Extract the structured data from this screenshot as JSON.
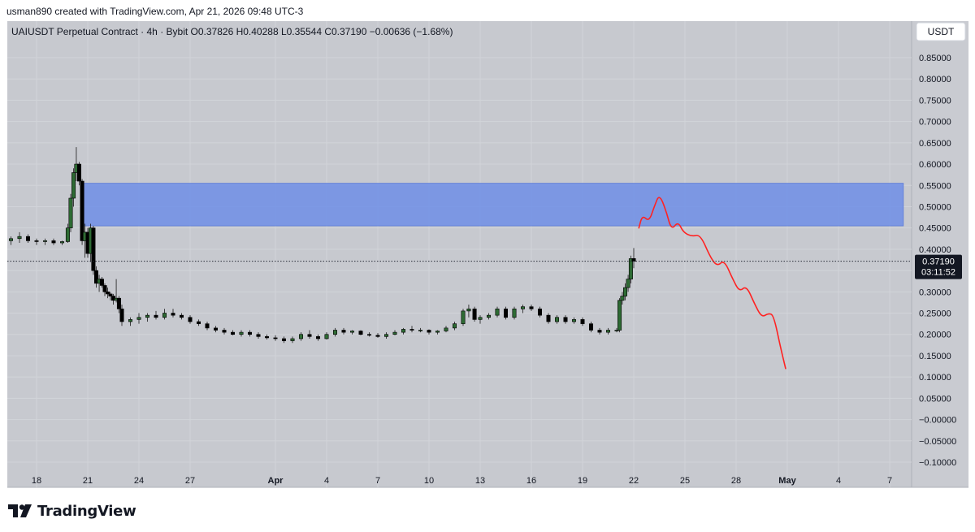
{
  "header": {
    "credit": "usman890 created with TradingView.com, Apr 21, 2026 09:48 UTC-3"
  },
  "legend": {
    "text": "UAIUSDT Perpetual Contract · 4h · Bybit  O0.37826  H0.40288  L0.35544  C0.37190  −0.00636 (−1.68%)"
  },
  "currency_button": {
    "label": "USDT"
  },
  "brand": {
    "name": "TradingView"
  },
  "chart_data": {
    "type": "candlestick",
    "symbol": "UAIUSDT Perpetual Contract",
    "interval": "4h",
    "exchange": "Bybit",
    "ohlc": {
      "open": 0.37826,
      "high": 0.40288,
      "low": 0.35544,
      "close": 0.3719,
      "change": -0.00636,
      "change_pct": -1.68
    },
    "last_price": {
      "value": 0.3719,
      "label": "0.37190",
      "countdown": "03:11:52"
    },
    "y_axis": {
      "min": -0.1,
      "max": 0.85,
      "step": 0.05,
      "tick_labels": [
        "0.85000",
        "0.80000",
        "0.75000",
        "0.70000",
        "0.65000",
        "0.60000",
        "0.55000",
        "0.50000",
        "0.45000",
        "0.40000",
        "0.35000",
        "0.30000",
        "0.25000",
        "0.20000",
        "0.15000",
        "0.10000",
        "0.05000",
        "−0.00000",
        "−0.05000",
        "−0.10000"
      ]
    },
    "x_axis": {
      "start_date": "2026-03-18",
      "ticks": [
        {
          "label": "18",
          "day": 0
        },
        {
          "label": "21",
          "day": 3
        },
        {
          "label": "24",
          "day": 6
        },
        {
          "label": "27",
          "day": 9
        },
        {
          "label": "Apr",
          "day": 14,
          "bold": true
        },
        {
          "label": "4",
          "day": 17
        },
        {
          "label": "7",
          "day": 20
        },
        {
          "label": "10",
          "day": 23
        },
        {
          "label": "13",
          "day": 26
        },
        {
          "label": "16",
          "day": 29
        },
        {
          "label": "19",
          "day": 32
        },
        {
          "label": "22",
          "day": 35
        },
        {
          "label": "25",
          "day": 38
        },
        {
          "label": "28",
          "day": 41
        },
        {
          "label": "May",
          "day": 44,
          "bold": true
        },
        {
          "label": "4",
          "day": 47
        },
        {
          "label": "7",
          "day": 50
        }
      ]
    },
    "grid": true,
    "candles": [
      [
        -1.5,
        0.42,
        0.43,
        0.41,
        0.425
      ],
      [
        -1.0,
        0.425,
        0.44,
        0.415,
        0.43
      ],
      [
        -0.5,
        0.43,
        0.435,
        0.415,
        0.42
      ],
      [
        0.0,
        0.42,
        0.425,
        0.41,
        0.418
      ],
      [
        0.5,
        0.418,
        0.425,
        0.41,
        0.42
      ],
      [
        1.0,
        0.42,
        0.425,
        0.41,
        0.415
      ],
      [
        1.5,
        0.415,
        0.42,
        0.41,
        0.418
      ],
      [
        1.83,
        0.418,
        0.46,
        0.415,
        0.45
      ],
      [
        2.0,
        0.45,
        0.53,
        0.44,
        0.52
      ],
      [
        2.17,
        0.52,
        0.59,
        0.5,
        0.58
      ],
      [
        2.33,
        0.58,
        0.64,
        0.56,
        0.6
      ],
      [
        2.5,
        0.6,
        0.605,
        0.55,
        0.56
      ],
      [
        2.67,
        0.56,
        0.565,
        0.41,
        0.42
      ],
      [
        2.83,
        0.42,
        0.46,
        0.38,
        0.44
      ],
      [
        3.0,
        0.44,
        0.45,
        0.38,
        0.39
      ],
      [
        3.17,
        0.39,
        0.46,
        0.37,
        0.45
      ],
      [
        3.33,
        0.45,
        0.455,
        0.34,
        0.35
      ],
      [
        3.5,
        0.35,
        0.36,
        0.31,
        0.32
      ],
      [
        3.67,
        0.32,
        0.34,
        0.3,
        0.33
      ],
      [
        3.83,
        0.33,
        0.335,
        0.31,
        0.315
      ],
      [
        4.0,
        0.315,
        0.32,
        0.29,
        0.3
      ],
      [
        4.17,
        0.3,
        0.31,
        0.285,
        0.295
      ],
      [
        4.33,
        0.295,
        0.3,
        0.28,
        0.29
      ],
      [
        4.5,
        0.29,
        0.295,
        0.27,
        0.28
      ],
      [
        4.67,
        0.28,
        0.33,
        0.275,
        0.285
      ],
      [
        4.83,
        0.285,
        0.29,
        0.25,
        0.26
      ],
      [
        5.0,
        0.26,
        0.27,
        0.22,
        0.23
      ],
      [
        5.5,
        0.23,
        0.24,
        0.22,
        0.235
      ],
      [
        6.0,
        0.235,
        0.25,
        0.225,
        0.24
      ],
      [
        6.5,
        0.24,
        0.25,
        0.23,
        0.245
      ],
      [
        7.0,
        0.245,
        0.255,
        0.235,
        0.24
      ],
      [
        7.5,
        0.24,
        0.26,
        0.235,
        0.25
      ],
      [
        8.0,
        0.25,
        0.26,
        0.24,
        0.245
      ],
      [
        8.5,
        0.245,
        0.25,
        0.235,
        0.24
      ],
      [
        9.0,
        0.24,
        0.245,
        0.225,
        0.23
      ],
      [
        9.5,
        0.23,
        0.235,
        0.22,
        0.225
      ],
      [
        10.0,
        0.225,
        0.23,
        0.21,
        0.215
      ],
      [
        10.5,
        0.215,
        0.22,
        0.205,
        0.21
      ],
      [
        11.0,
        0.21,
        0.215,
        0.2,
        0.205
      ],
      [
        11.5,
        0.205,
        0.21,
        0.198,
        0.2
      ],
      [
        12.0,
        0.2,
        0.21,
        0.195,
        0.205
      ],
      [
        12.5,
        0.205,
        0.21,
        0.195,
        0.2
      ],
      [
        13.0,
        0.2,
        0.205,
        0.19,
        0.195
      ],
      [
        13.5,
        0.195,
        0.2,
        0.188,
        0.192
      ],
      [
        14.0,
        0.192,
        0.198,
        0.185,
        0.19
      ],
      [
        14.5,
        0.19,
        0.195,
        0.18,
        0.185
      ],
      [
        15.0,
        0.185,
        0.195,
        0.18,
        0.19
      ],
      [
        15.5,
        0.19,
        0.205,
        0.185,
        0.2
      ],
      [
        16.0,
        0.2,
        0.21,
        0.19,
        0.195
      ],
      [
        16.5,
        0.195,
        0.2,
        0.185,
        0.19
      ],
      [
        17.0,
        0.19,
        0.205,
        0.188,
        0.2
      ],
      [
        17.5,
        0.2,
        0.215,
        0.195,
        0.21
      ],
      [
        18.0,
        0.21,
        0.215,
        0.2,
        0.205
      ],
      [
        18.5,
        0.205,
        0.21,
        0.2,
        0.208
      ],
      [
        19.0,
        0.208,
        0.21,
        0.198,
        0.2
      ],
      [
        19.5,
        0.2,
        0.205,
        0.195,
        0.198
      ],
      [
        20.0,
        0.198,
        0.203,
        0.192,
        0.195
      ],
      [
        20.5,
        0.195,
        0.205,
        0.19,
        0.2
      ],
      [
        21.0,
        0.2,
        0.21,
        0.198,
        0.205
      ],
      [
        21.5,
        0.205,
        0.215,
        0.2,
        0.212
      ],
      [
        22.0,
        0.212,
        0.22,
        0.205,
        0.21
      ],
      [
        22.5,
        0.21,
        0.215,
        0.205,
        0.21
      ],
      [
        23.0,
        0.21,
        0.212,
        0.2,
        0.205
      ],
      [
        23.5,
        0.205,
        0.21,
        0.2,
        0.208
      ],
      [
        24.0,
        0.208,
        0.22,
        0.205,
        0.215
      ],
      [
        24.5,
        0.215,
        0.23,
        0.21,
        0.225
      ],
      [
        25.0,
        0.225,
        0.26,
        0.22,
        0.255
      ],
      [
        25.33,
        0.255,
        0.27,
        0.24,
        0.26
      ],
      [
        25.67,
        0.26,
        0.265,
        0.23,
        0.235
      ],
      [
        26.0,
        0.235,
        0.245,
        0.225,
        0.24
      ],
      [
        26.5,
        0.24,
        0.25,
        0.235,
        0.245
      ],
      [
        27.0,
        0.245,
        0.265,
        0.24,
        0.26
      ],
      [
        27.5,
        0.26,
        0.265,
        0.235,
        0.24
      ],
      [
        28.0,
        0.24,
        0.265,
        0.235,
        0.26
      ],
      [
        28.5,
        0.26,
        0.27,
        0.25,
        0.265
      ],
      [
        29.0,
        0.265,
        0.27,
        0.255,
        0.26
      ],
      [
        29.5,
        0.26,
        0.265,
        0.24,
        0.245
      ],
      [
        30.0,
        0.245,
        0.25,
        0.225,
        0.23
      ],
      [
        30.5,
        0.23,
        0.245,
        0.225,
        0.24
      ],
      [
        31.0,
        0.24,
        0.245,
        0.225,
        0.23
      ],
      [
        31.5,
        0.23,
        0.24,
        0.225,
        0.235
      ],
      [
        32.0,
        0.235,
        0.24,
        0.22,
        0.225
      ],
      [
        32.5,
        0.225,
        0.23,
        0.205,
        0.21
      ],
      [
        33.0,
        0.21,
        0.215,
        0.2,
        0.205
      ],
      [
        33.5,
        0.205,
        0.215,
        0.2,
        0.21
      ],
      [
        34.0,
        0.21,
        0.215,
        0.205,
        0.21
      ],
      [
        34.17,
        0.21,
        0.285,
        0.205,
        0.28
      ],
      [
        34.33,
        0.28,
        0.3,
        0.27,
        0.29
      ],
      [
        34.5,
        0.29,
        0.32,
        0.28,
        0.31
      ],
      [
        34.67,
        0.31,
        0.34,
        0.3,
        0.33
      ],
      [
        34.83,
        0.33,
        0.385,
        0.32,
        0.378
      ],
      [
        35.0,
        0.37826,
        0.40288,
        0.35544,
        0.3719
      ]
    ],
    "zones": [
      {
        "type": "supply",
        "from": 0.455,
        "to": 0.555,
        "start_day": 2.67,
        "end_day": 50.8,
        "color": "#6f8ee6"
      }
    ],
    "projection": {
      "color": "#ff2222",
      "points": [
        [
          35.3,
          0.45
        ],
        [
          35.5,
          0.48
        ],
        [
          35.9,
          0.465
        ],
        [
          36.2,
          0.5
        ],
        [
          36.5,
          0.53
        ],
        [
          36.9,
          0.49
        ],
        [
          37.2,
          0.445
        ],
        [
          37.6,
          0.465
        ],
        [
          37.9,
          0.44
        ],
        [
          38.4,
          0.43
        ],
        [
          38.9,
          0.435
        ],
        [
          39.5,
          0.38
        ],
        [
          39.9,
          0.36
        ],
        [
          40.3,
          0.375
        ],
        [
          40.8,
          0.33
        ],
        [
          41.2,
          0.3
        ],
        [
          41.6,
          0.315
        ],
        [
          42.1,
          0.27
        ],
        [
          42.5,
          0.24
        ],
        [
          42.9,
          0.25
        ],
        [
          43.2,
          0.245
        ],
        [
          43.6,
          0.17
        ],
        [
          43.9,
          0.12
        ]
      ]
    },
    "colors": {
      "up": "#2e6b34",
      "down": "#000000",
      "plot_bg": "#c7c9cf",
      "grid": "#d2d4d9"
    }
  }
}
